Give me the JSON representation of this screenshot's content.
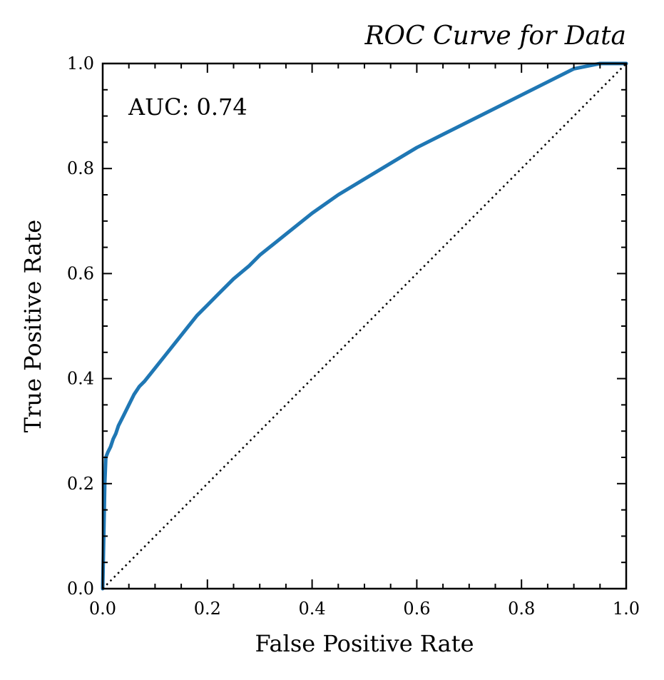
{
  "chart_data": {
    "type": "line",
    "title": "ROC Curve for Data",
    "xlabel": "False Positive Rate",
    "ylabel": "True Positive Rate",
    "xlim": [
      0.0,
      1.0
    ],
    "ylim": [
      0.0,
      1.0
    ],
    "x_ticks": [
      "0.0",
      "0.2",
      "0.4",
      "0.6",
      "0.8",
      "1.0"
    ],
    "y_ticks": [
      "0.0",
      "0.2",
      "0.4",
      "0.6",
      "0.8",
      "1.0"
    ],
    "grid": false,
    "annotation": "AUC: 0.74",
    "series": [
      {
        "color": "#1f77b4",
        "style": "solid",
        "x": [
          0.0,
          0.002,
          0.004,
          0.006,
          0.01,
          0.015,
          0.02,
          0.025,
          0.03,
          0.04,
          0.05,
          0.06,
          0.07,
          0.08,
          0.1,
          0.12,
          0.14,
          0.16,
          0.18,
          0.2,
          0.22,
          0.25,
          0.28,
          0.3,
          0.35,
          0.4,
          0.45,
          0.5,
          0.55,
          0.6,
          0.65,
          0.7,
          0.75,
          0.8,
          0.85,
          0.9,
          0.95,
          1.0
        ],
        "y": [
          0.0,
          0.1,
          0.2,
          0.25,
          0.26,
          0.27,
          0.285,
          0.295,
          0.31,
          0.33,
          0.35,
          0.37,
          0.385,
          0.395,
          0.42,
          0.445,
          0.47,
          0.495,
          0.52,
          0.54,
          0.56,
          0.59,
          0.615,
          0.635,
          0.675,
          0.715,
          0.75,
          0.78,
          0.81,
          0.84,
          0.865,
          0.89,
          0.915,
          0.94,
          0.965,
          0.99,
          1.0,
          1.0
        ]
      },
      {
        "color": "#000000",
        "style": "dotted",
        "x": [
          0.0,
          1.0
        ],
        "y": [
          0.0,
          1.0
        ]
      }
    ]
  }
}
